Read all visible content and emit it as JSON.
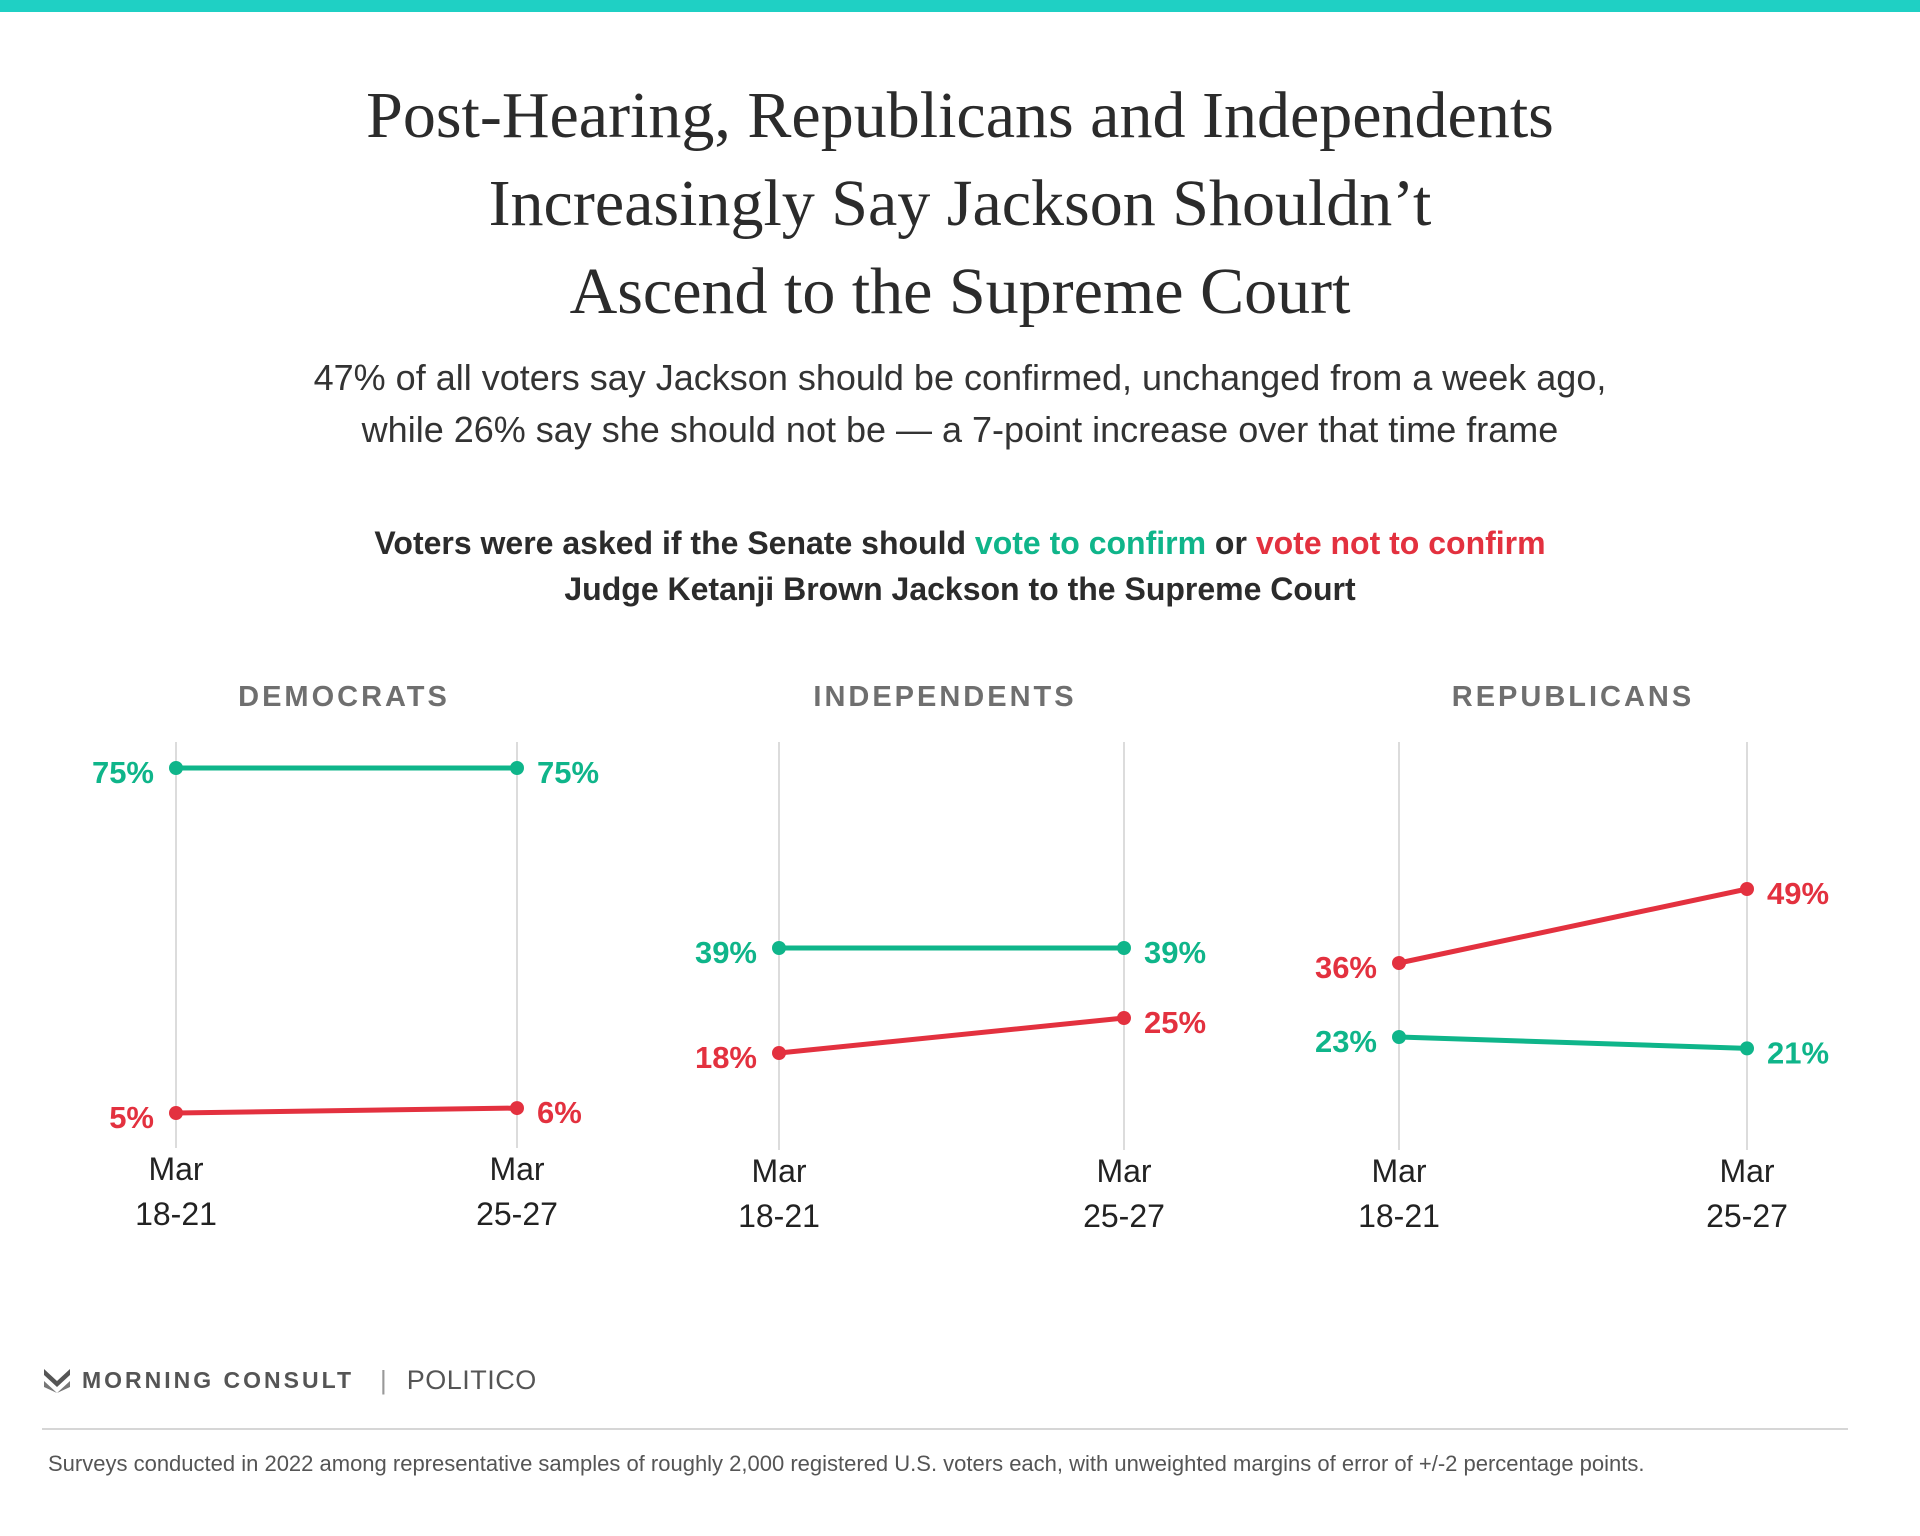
{
  "header": {
    "title_lines": [
      "Post-Hearing, Republicans and Independents",
      "Increasingly Say Jackson Shouldn’t",
      "Ascend to the Supreme Court"
    ],
    "subtitle_lines": [
      "47% of all voters say Jackson should be confirmed, unchanged from a week ago,",
      "while 26% say she should not be — a 7-point increase over that time frame"
    ],
    "question": {
      "part1": "Voters were asked if the Senate should ",
      "confirm": "vote to confirm",
      "part2": " or ",
      "not_confirm": "vote not to confirm",
      "line2": "Judge Ketanji Brown Jackson to the Supreme Court"
    }
  },
  "colors": {
    "confirm": "#0fb58a",
    "not_confirm": "#e3313f",
    "accent_bar": "#1fd0c4"
  },
  "chart_data": [
    {
      "type": "line",
      "title": "DEMOCRATS",
      "categories": [
        "Mar 18-21",
        "Mar 25-27"
      ],
      "series": [
        {
          "key": "confirm",
          "values": [
            75,
            75
          ],
          "labels": [
            "75%",
            "75%"
          ]
        },
        {
          "key": "not_confirm",
          "values": [
            5,
            6
          ],
          "labels": [
            "5%",
            "6%"
          ]
        }
      ]
    },
    {
      "type": "line",
      "title": "INDEPENDENTS",
      "categories": [
        "Mar 18-21",
        "Mar 25-27"
      ],
      "series": [
        {
          "key": "confirm",
          "values": [
            39,
            39
          ],
          "labels": [
            "39%",
            "39%"
          ]
        },
        {
          "key": "not_confirm",
          "values": [
            18,
            25
          ],
          "labels": [
            "18%",
            "25%"
          ]
        }
      ]
    },
    {
      "type": "line",
      "title": "REPUBLICANS",
      "categories": [
        "Mar 18-21",
        "Mar 25-27"
      ],
      "series": [
        {
          "key": "confirm",
          "values": [
            23,
            21
          ],
          "labels": [
            "23%",
            "21%"
          ]
        },
        {
          "key": "not_confirm",
          "values": [
            36,
            49
          ],
          "labels": [
            "36%",
            "49%"
          ]
        }
      ]
    }
  ],
  "footer": {
    "brand": "MORNING CONSULT",
    "partner": "POLITICO",
    "separator": "|",
    "note": "Surveys conducted in 2022 among representative samples of roughly 2,000 registered U.S. voters each, with unweighted margins of error of +/-2 percentage points."
  }
}
